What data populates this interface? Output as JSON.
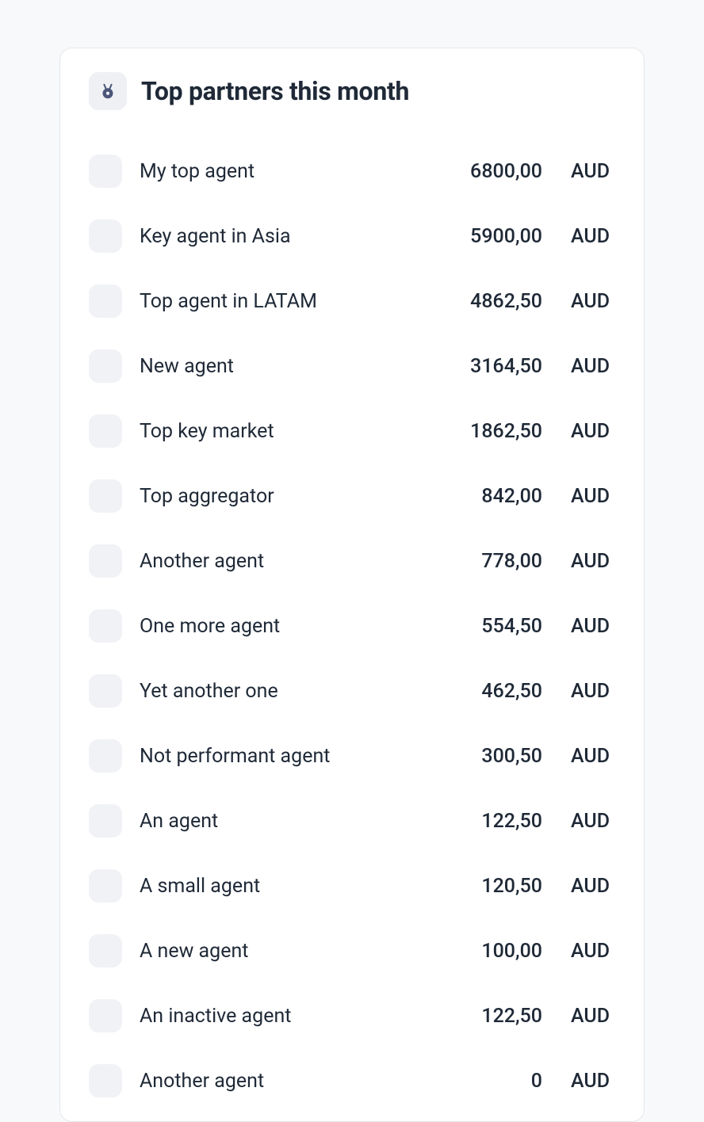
{
  "card": {
    "title": "Top partners this month",
    "icon_color": "#4b5678",
    "icon_bg": "#eef0f4",
    "border_color": "#e5e7eb",
    "bg_color": "#ffffff"
  },
  "page_bg": "#f8f9fb",
  "partners": [
    {
      "name": "My top agent",
      "amount": "6800,00",
      "currency": "AUD"
    },
    {
      "name": "Key agent in Asia",
      "amount": "5900,00",
      "currency": "AUD"
    },
    {
      "name": "Top agent in LATAM",
      "amount": "4862,50",
      "currency": "AUD"
    },
    {
      "name": "New agent",
      "amount": "3164,50",
      "currency": "AUD"
    },
    {
      "name": "Top key market",
      "amount": "1862,50",
      "currency": "AUD"
    },
    {
      "name": "Top aggregator",
      "amount": "842,00",
      "currency": "AUD"
    },
    {
      "name": "Another agent",
      "amount": "778,00",
      "currency": "AUD"
    },
    {
      "name": "One more agent",
      "amount": "554,50",
      "currency": "AUD"
    },
    {
      "name": "Yet another one",
      "amount": "462,50",
      "currency": "AUD"
    },
    {
      "name": "Not performant agent",
      "amount": "300,50",
      "currency": "AUD"
    },
    {
      "name": "An agent",
      "amount": "122,50",
      "currency": "AUD"
    },
    {
      "name": "A small agent",
      "amount": "120,50",
      "currency": "AUD"
    },
    {
      "name": "A new agent",
      "amount": "100,00",
      "currency": "AUD"
    },
    {
      "name": "An inactive agent",
      "amount": "122,50",
      "currency": "AUD"
    },
    {
      "name": "Another agent",
      "amount": "0",
      "currency": "AUD"
    }
  ]
}
